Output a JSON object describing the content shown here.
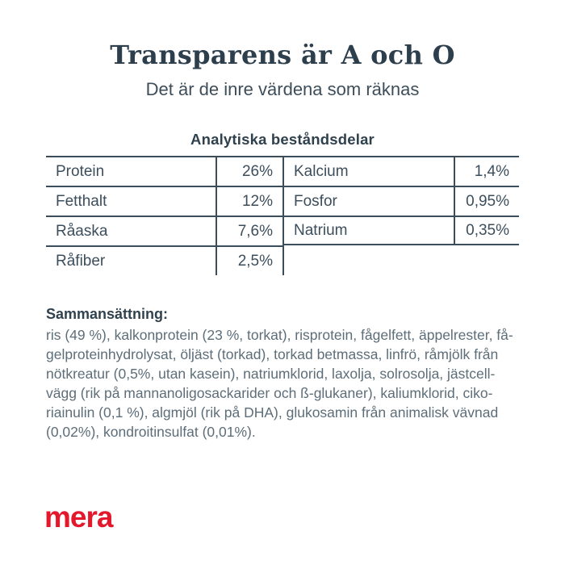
{
  "page": {
    "title": "Transparens är A och O",
    "subtitle": "Det är de inre värdena som räknas"
  },
  "analysis_table": {
    "heading": "Analytiska beståndsdelar",
    "left": [
      {
        "label": "Protein",
        "value": "26%"
      },
      {
        "label": "Fetthalt",
        "value": "12%"
      },
      {
        "label": "Råaska",
        "value": "7,6%"
      },
      {
        "label": "Råfiber",
        "value": "2,5%"
      }
    ],
    "right": [
      {
        "label": "Kalcium",
        "value": "1,4%"
      },
      {
        "label": "Fosfor",
        "value": "0,95%"
      },
      {
        "label": "Natrium",
        "value": "0,35%"
      }
    ]
  },
  "composition": {
    "heading": "Sammansättning:",
    "body": "ris (49 %), kalkonprotein (23 %, torkat), risprotein, fågelfett, äppelrester, få-\ngelproteinhydrolysat, öljäst (torkad), torkad betmassa, linfrö, råmjölk från\nnötkreatur (0,5%, utan kasein), natriumklorid, laxolja, solrosolja, jästcell-\nvägg (rik på mannanoligosackarider och ß-glukaner), kaliumklorid, ciko-\nriainulin (0,1 %), algmjöl (rik på DHA), glukosamin från animalisk vävnad\n(0,02%), kondroitinsulfat (0,01%)."
  },
  "brand": {
    "logo_text": "mera",
    "logo_color": "#e4182d"
  },
  "colors": {
    "background": "#ffffff",
    "heading_text": "#2d3e4c",
    "table_line": "#3b4d5b",
    "body_text": "#5d6e79"
  }
}
